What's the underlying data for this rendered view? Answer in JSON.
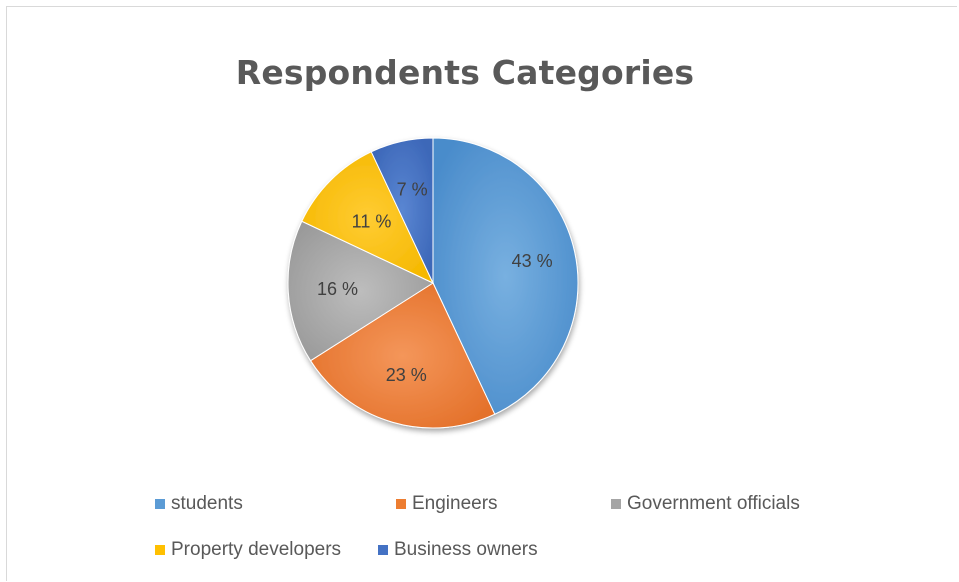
{
  "chart_data": {
    "type": "pie",
    "title": "Respondents Categories",
    "categories": [
      "students",
      "Engineers",
      "Government officials",
      "Property developers",
      "Business owners"
    ],
    "values": [
      43,
      23,
      16,
      11,
      7
    ],
    "data_labels": [
      "43 %",
      "23 %",
      "16 %",
      "11 %",
      "7 %"
    ],
    "colors": [
      "#5b9bd5",
      "#ed7d31",
      "#a5a5a5",
      "#ffc000",
      "#4472c4"
    ],
    "legend_position": "bottom",
    "start_angle": "top, clockwise"
  }
}
